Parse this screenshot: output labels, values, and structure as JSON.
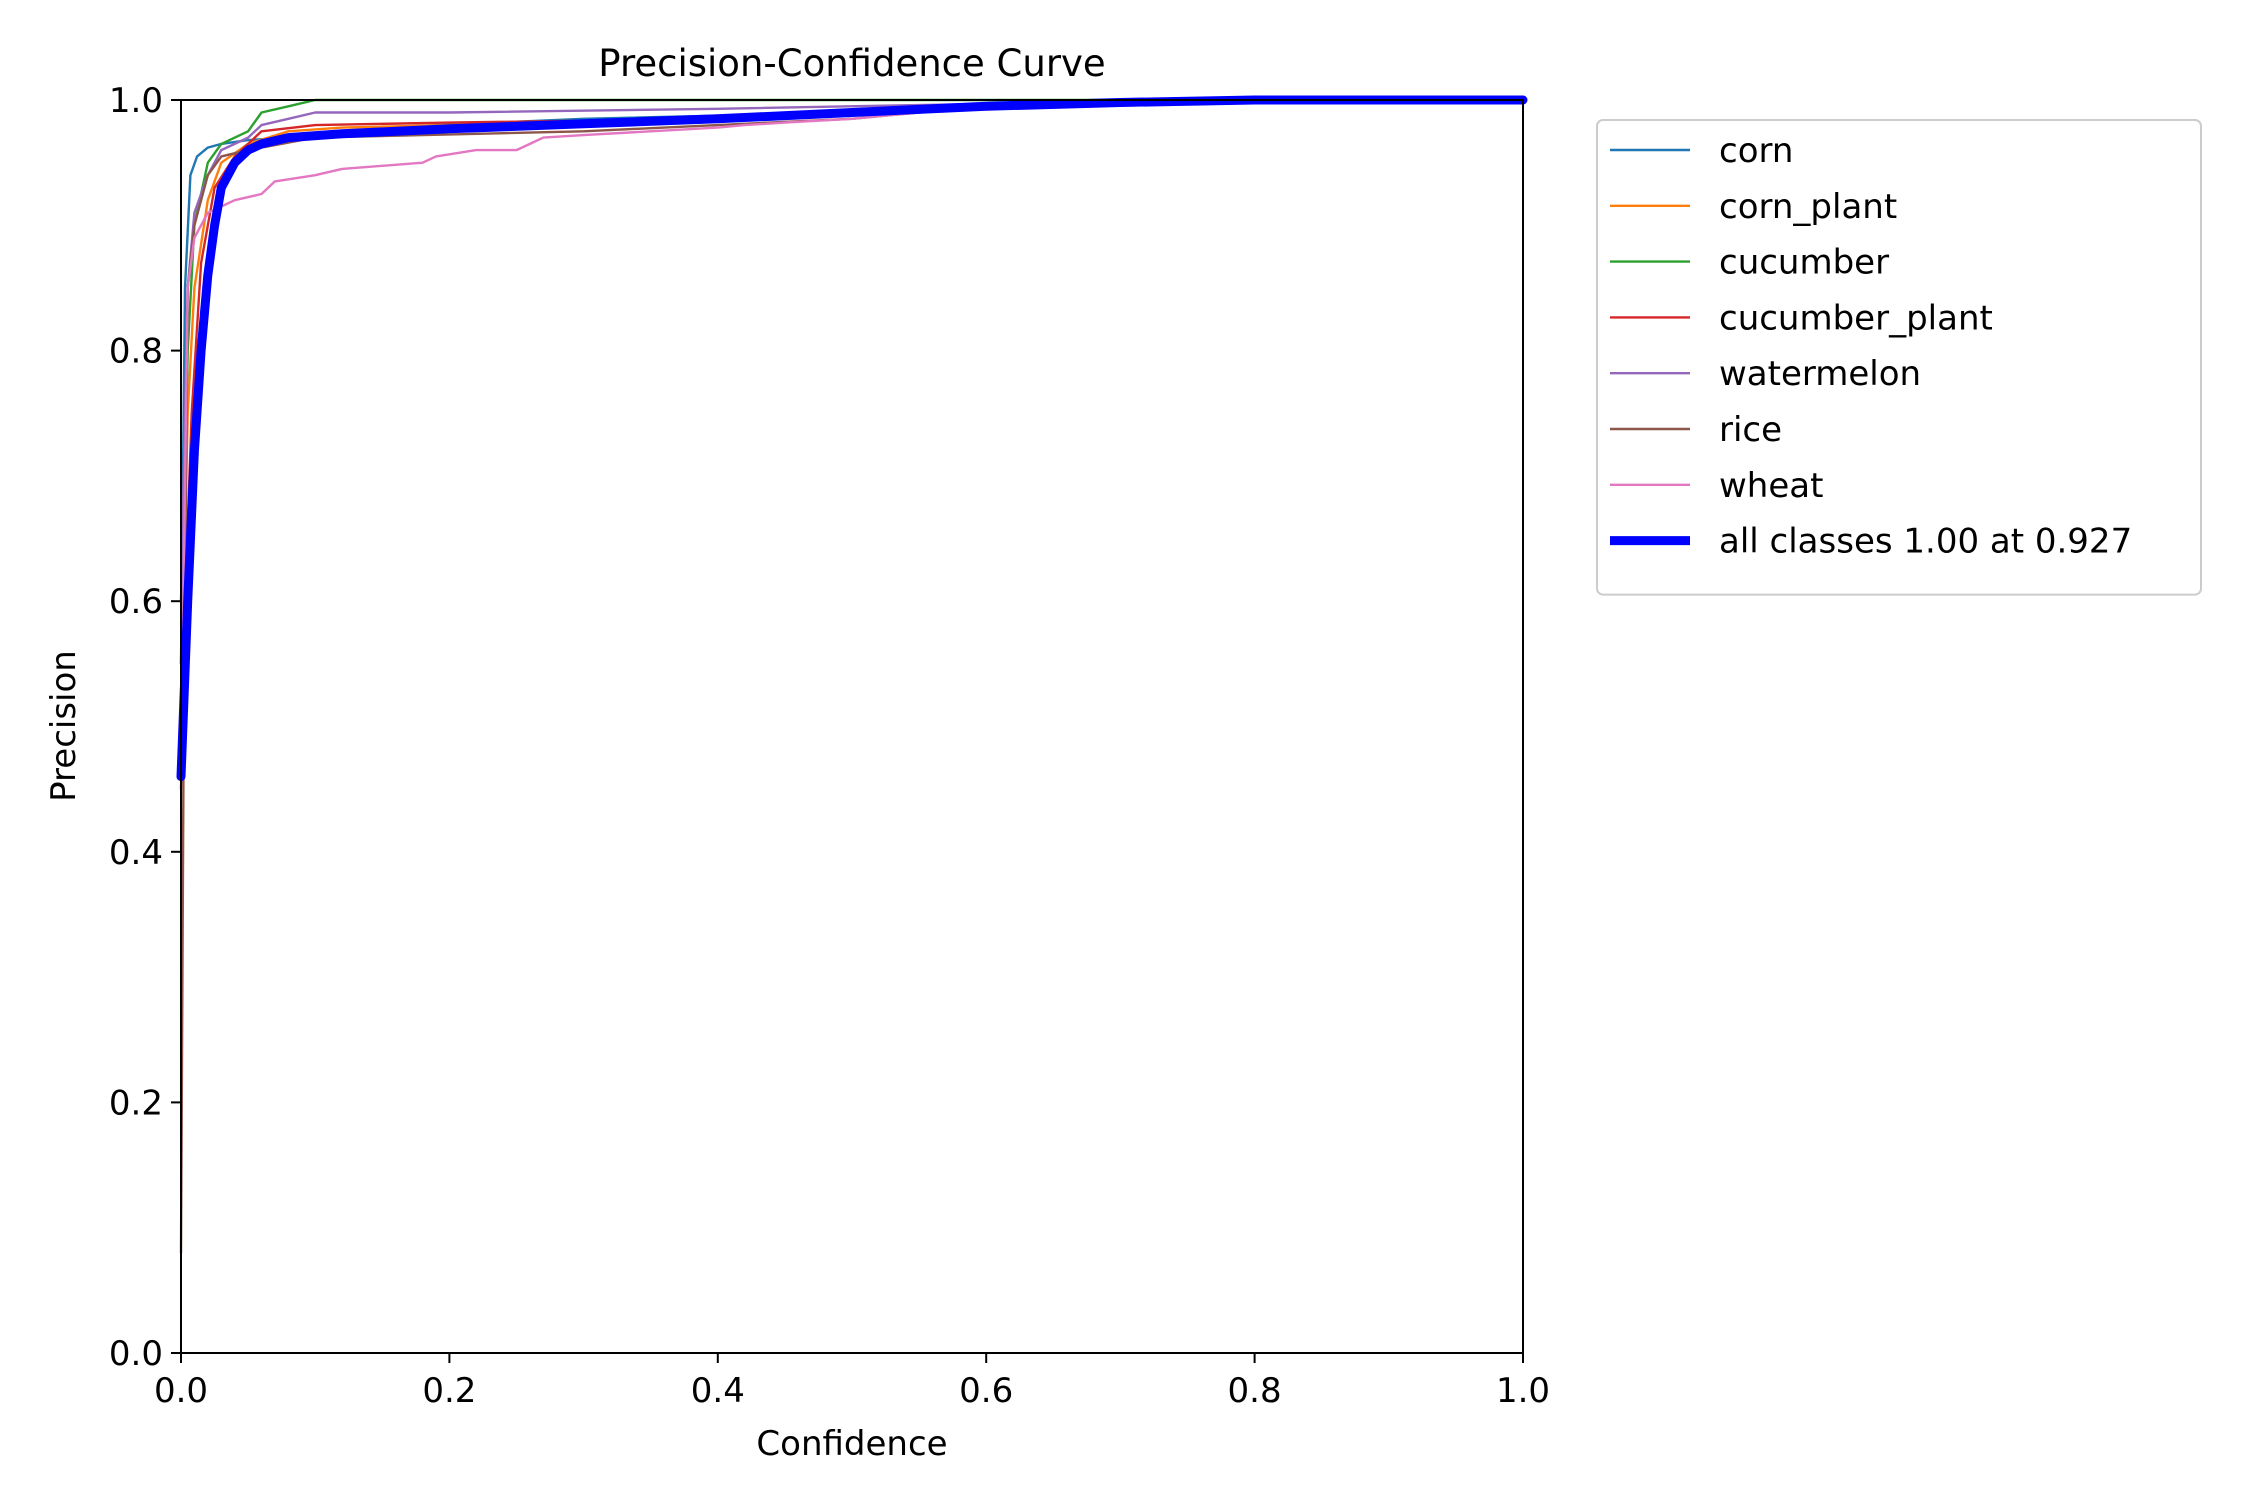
{
  "chart_data": {
    "type": "line",
    "title": "Precision-Confidence Curve",
    "xlabel": "Confidence",
    "ylabel": "Precision",
    "xlim": [
      0,
      1
    ],
    "ylim": [
      0,
      1
    ],
    "xticks": [
      "0.0",
      "0.2",
      "0.4",
      "0.6",
      "0.8",
      "1.0"
    ],
    "yticks": [
      "0.0",
      "0.2",
      "0.4",
      "0.6",
      "0.8",
      "1.0"
    ],
    "grid": false,
    "legend_position": "outside-upper-right",
    "series": [
      {
        "name": "corn",
        "color": "#1f77b4",
        "x": [
          0,
          0.003,
          0.007,
          0.012,
          0.02,
          0.03,
          0.05,
          0.08,
          0.15,
          0.3,
          0.5,
          0.7,
          0.9,
          1.0
        ],
        "y": [
          0.55,
          0.85,
          0.94,
          0.955,
          0.962,
          0.965,
          0.968,
          0.97,
          0.978,
          0.985,
          0.99,
          0.997,
          1.0,
          1.0
        ]
      },
      {
        "name": "corn_plant",
        "color": "#ff7f0e",
        "x": [
          0,
          0.005,
          0.01,
          0.02,
          0.03,
          0.05,
          0.08,
          0.12,
          0.2,
          0.4,
          0.6,
          0.8,
          1.0
        ],
        "y": [
          0.5,
          0.75,
          0.85,
          0.92,
          0.95,
          0.965,
          0.975,
          0.978,
          0.98,
          0.985,
          0.995,
          1.0,
          1.0
        ]
      },
      {
        "name": "cucumber",
        "color": "#2ca02c",
        "x": [
          0,
          0.005,
          0.01,
          0.02,
          0.03,
          0.05,
          0.06,
          0.08,
          0.1,
          0.12,
          0.3,
          0.6,
          1.0
        ],
        "y": [
          0.55,
          0.8,
          0.9,
          0.95,
          0.965,
          0.975,
          0.99,
          0.995,
          1.0,
          1.0,
          1.0,
          1.0,
          1.0
        ]
      },
      {
        "name": "cucumber_plant",
        "color": "#d62728",
        "x": [
          0,
          0.003,
          0.008,
          0.015,
          0.025,
          0.04,
          0.06,
          0.1,
          0.2,
          0.4,
          0.6,
          0.8,
          1.0
        ],
        "y": [
          0.45,
          0.6,
          0.75,
          0.87,
          0.93,
          0.955,
          0.975,
          0.98,
          0.982,
          0.985,
          0.995,
          1.0,
          1.0
        ]
      },
      {
        "name": "watermelon",
        "color": "#9467bd",
        "x": [
          0,
          0.005,
          0.01,
          0.02,
          0.03,
          0.05,
          0.06,
          0.08,
          0.1,
          0.2,
          0.4,
          0.6,
          1.0
        ],
        "y": [
          0.6,
          0.85,
          0.91,
          0.94,
          0.96,
          0.97,
          0.98,
          0.985,
          0.99,
          0.99,
          0.993,
          0.997,
          1.0
        ]
      },
      {
        "name": "rice",
        "color": "#8c564b",
        "x": [
          0,
          0.002,
          0.005,
          0.01,
          0.015,
          0.02,
          0.03,
          0.05,
          0.1,
          0.3,
          0.5,
          0.55,
          0.6,
          1.0
        ],
        "y": [
          0.08,
          0.5,
          0.85,
          0.9,
          0.92,
          0.94,
          0.955,
          0.96,
          0.97,
          0.975,
          0.985,
          0.99,
          0.995,
          1.0
        ]
      },
      {
        "name": "wheat",
        "color": "#e377c2",
        "x": [
          0,
          0.005,
          0.01,
          0.02,
          0.03,
          0.04,
          0.06,
          0.07,
          0.1,
          0.12,
          0.18,
          0.19,
          0.22,
          0.25,
          0.26,
          0.27,
          0.3,
          0.35,
          0.4,
          0.42,
          0.45,
          0.5,
          0.55,
          0.6,
          0.75,
          1.0
        ],
        "y": [
          0.46,
          0.85,
          0.89,
          0.91,
          0.915,
          0.92,
          0.925,
          0.935,
          0.94,
          0.945,
          0.95,
          0.955,
          0.96,
          0.96,
          0.965,
          0.97,
          0.972,
          0.975,
          0.978,
          0.98,
          0.982,
          0.985,
          0.99,
          0.995,
          0.998,
          1.0
        ]
      },
      {
        "name": "all classes 1.00 at 0.927",
        "color": "#0000ff",
        "bold": true,
        "x": [
          0,
          0.005,
          0.01,
          0.015,
          0.02,
          0.025,
          0.03,
          0.04,
          0.05,
          0.06,
          0.08,
          0.12,
          0.2,
          0.3,
          0.4,
          0.5,
          0.6,
          0.7,
          0.8,
          0.9,
          1.0
        ],
        "y": [
          0.46,
          0.6,
          0.72,
          0.8,
          0.86,
          0.9,
          0.93,
          0.95,
          0.96,
          0.965,
          0.97,
          0.973,
          0.977,
          0.981,
          0.985,
          0.99,
          0.995,
          0.998,
          1.0,
          1.0,
          1.0
        ]
      }
    ]
  }
}
